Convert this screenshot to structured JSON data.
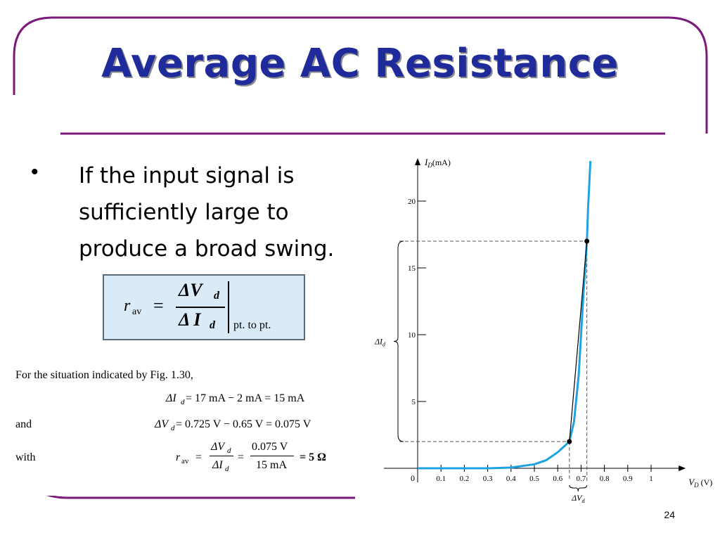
{
  "slide": {
    "title": "Average AC Resistance",
    "bullet_symbol": "•",
    "bullet_lines": [
      "If the input signal is",
      "sufficiently large to",
      "produce a broad swing."
    ],
    "page_number": "24",
    "frame_color": "#7b1a7b",
    "title_color": "#1f2b9b"
  },
  "formula": {
    "lhs": "r",
    "lhs_sub": "av",
    "equals": "=",
    "numerator": "ΔV",
    "numerator_sub": "d",
    "denominator": "Δ I",
    "denominator_sub": "d",
    "suffix": "pt. to pt."
  },
  "example": {
    "intro": "For the situation indicated by Fig. 1.30,",
    "line1": "ΔI",
    "line1_sub": "d",
    "line1_rest": " = 17 mA − 2 mA = 15 mA",
    "label_and": "and",
    "line2": "ΔV",
    "line2_sub": "d",
    "line2_rest": " = 0.725 V − 0.65 V = 0.075 V",
    "label_with": "with",
    "r_lhs": "r",
    "r_sub": "av",
    "frac1_num": "ΔV",
    "frac1_num_sub": "d",
    "frac1_den": "ΔI",
    "frac1_den_sub": "d",
    "frac2_num": "0.075 V",
    "frac2_den": "15 mA",
    "result": "= 5 Ω"
  },
  "chart_data": {
    "type": "line",
    "ylabel_main": "I",
    "ylabel_sub": "D",
    "ylabel_unit": "(mA)",
    "xlabel_main": "V",
    "xlabel_sub": "D",
    "xlabel_unit": "(V)",
    "xlim": [
      0,
      1.1
    ],
    "ylim": [
      0,
      23
    ],
    "x_ticks": [
      0.1,
      0.2,
      0.3,
      0.4,
      0.5,
      0.6,
      0.7,
      0.8,
      0.9,
      1
    ],
    "x_tick_labels": [
      "0.1",
      "0.2",
      "0.3",
      "0.4",
      "0.5",
      "0.6",
      "0.7",
      "0.8",
      "0.9",
      "1"
    ],
    "origin_label": "0",
    "y_ticks": [
      5,
      10,
      15,
      20
    ],
    "y_tick_labels": [
      "5",
      "10",
      "15",
      "20"
    ],
    "series": [
      {
        "color": "#1fa3e0",
        "x": [
          0,
          0.3,
          0.4,
          0.5,
          0.55,
          0.6,
          0.625,
          0.65,
          0.67,
          0.69,
          0.7,
          0.71,
          0.72,
          0.725,
          0.73,
          0.74
        ],
        "y": [
          0,
          0,
          0.05,
          0.3,
          0.6,
          1.2,
          1.6,
          2.0,
          3.5,
          7.0,
          10.0,
          13.0,
          15.5,
          17.0,
          19.5,
          23.0
        ]
      }
    ],
    "points": [
      {
        "x": 0.65,
        "y": 2
      },
      {
        "x": 0.725,
        "y": 17
      }
    ],
    "delta_y_label": "ΔI",
    "delta_y_sub": "d",
    "delta_x_label": "ΔV",
    "delta_x_sub": "d"
  }
}
